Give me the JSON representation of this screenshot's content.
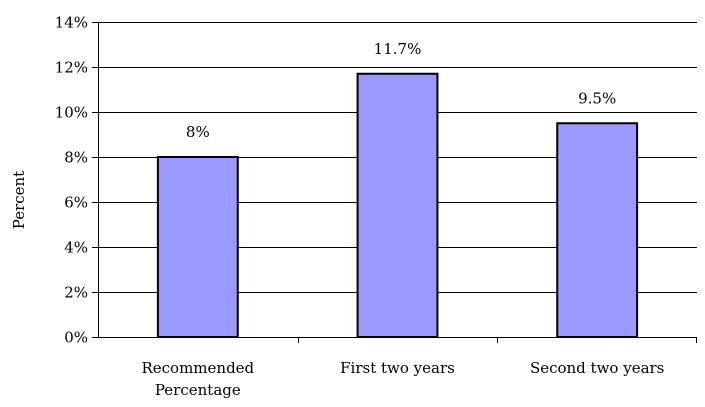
{
  "chart_data": {
    "type": "bar",
    "categories": [
      [
        "Recommended",
        "Percentage"
      ],
      [
        "First two years"
      ],
      [
        "Second two years"
      ]
    ],
    "values": [
      8,
      11.7,
      9.5
    ],
    "data_labels": [
      "8%",
      "11.7%",
      "9.5%"
    ],
    "ylabel": "Percent",
    "ylim": [
      0,
      14
    ],
    "yticks": [
      0,
      2,
      4,
      6,
      8,
      10,
      12,
      14
    ],
    "ytick_labels": [
      "0%",
      "2%",
      "4%",
      "6%",
      "8%",
      "10%",
      "12%",
      "14%"
    ],
    "grid": true,
    "legend": "none",
    "colors": {
      "bar_fill": "#9999ff",
      "bar_stroke": "#000000",
      "grid": "#000000"
    }
  }
}
